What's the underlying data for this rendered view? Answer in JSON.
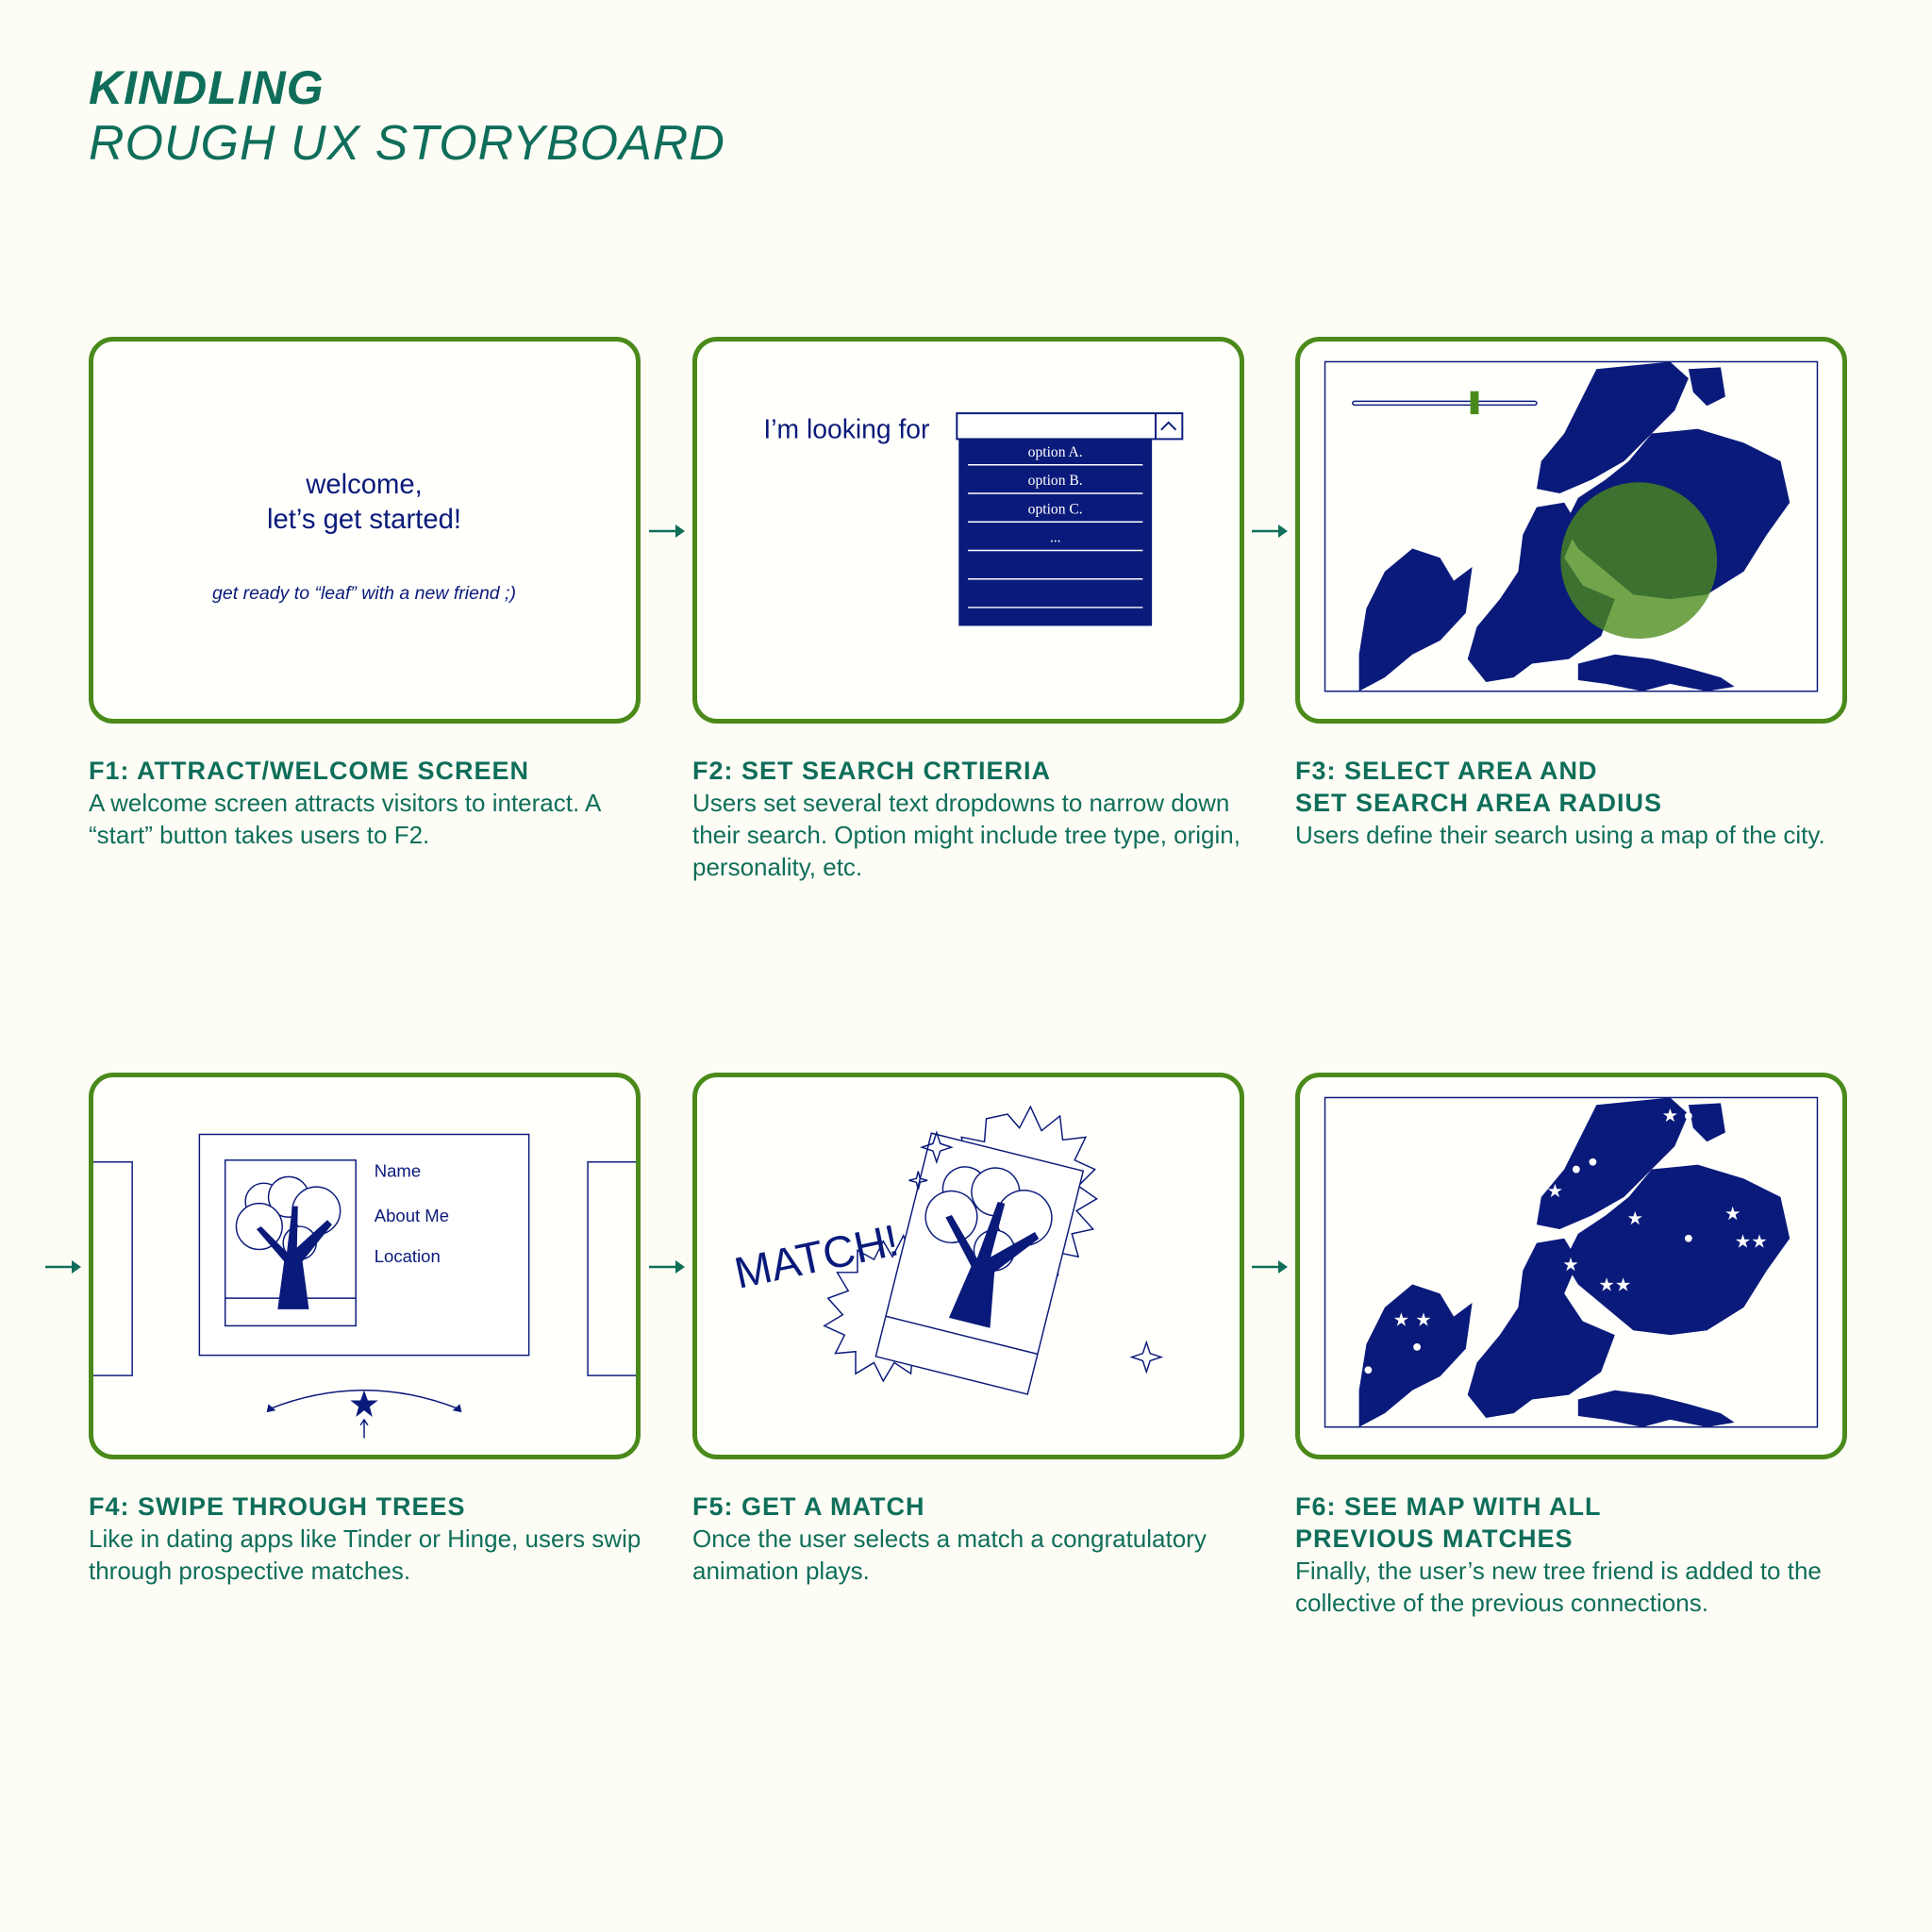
{
  "header": {
    "title": "KINDLING",
    "subtitle": "ROUGH UX STORYBOARD"
  },
  "colors": {
    "frame_green": "#4a8a1a",
    "navy": "#0a1a7a",
    "teal_text": "#0f6e5a",
    "radius_green": "#7ab33a",
    "background": "#fdfdf5"
  },
  "frames": [
    {
      "heading": "F1: ATTRACT/WELCOME SCREEN",
      "desc": "A welcome screen attracts visitors to interact. A “start” button takes users to F2.",
      "welcome_line1": "welcome,",
      "welcome_line2": "let’s get started!",
      "tagline": "get ready to “leaf” with a new friend ;)"
    },
    {
      "heading": "F2: SET SEARCH CRTIERIA",
      "desc": "Users set several text dropdowns to narrow down their search. Option might include tree type, origin, personality, etc.",
      "prompt": "I’m looking for",
      "options": [
        "option A.",
        "option B.",
        "option C.",
        "..."
      ]
    },
    {
      "heading_line1": "F3: SELECT AREA AND",
      "heading_line2": "SET SEARCH AREA RADIUS",
      "desc": "Users define their search using a map of the city."
    },
    {
      "heading": "F4: SWIPE THROUGH TREES",
      "desc": "Like in dating apps like Tinder or Hinge, users swip through prospective matches.",
      "profile_fields": [
        "Name",
        "About Me",
        "Location"
      ]
    },
    {
      "heading": "F5: GET A MATCH",
      "desc": "Once the user selects a match a congratulatory animation plays.",
      "match_text": "MATCH!"
    },
    {
      "heading_line1": "F6: SEE MAP WITH ALL",
      "heading_line2": "PREVIOUS MATCHES",
      "desc": "Finally, the user’s new tree friend is added to the collective of the previous connections."
    }
  ]
}
